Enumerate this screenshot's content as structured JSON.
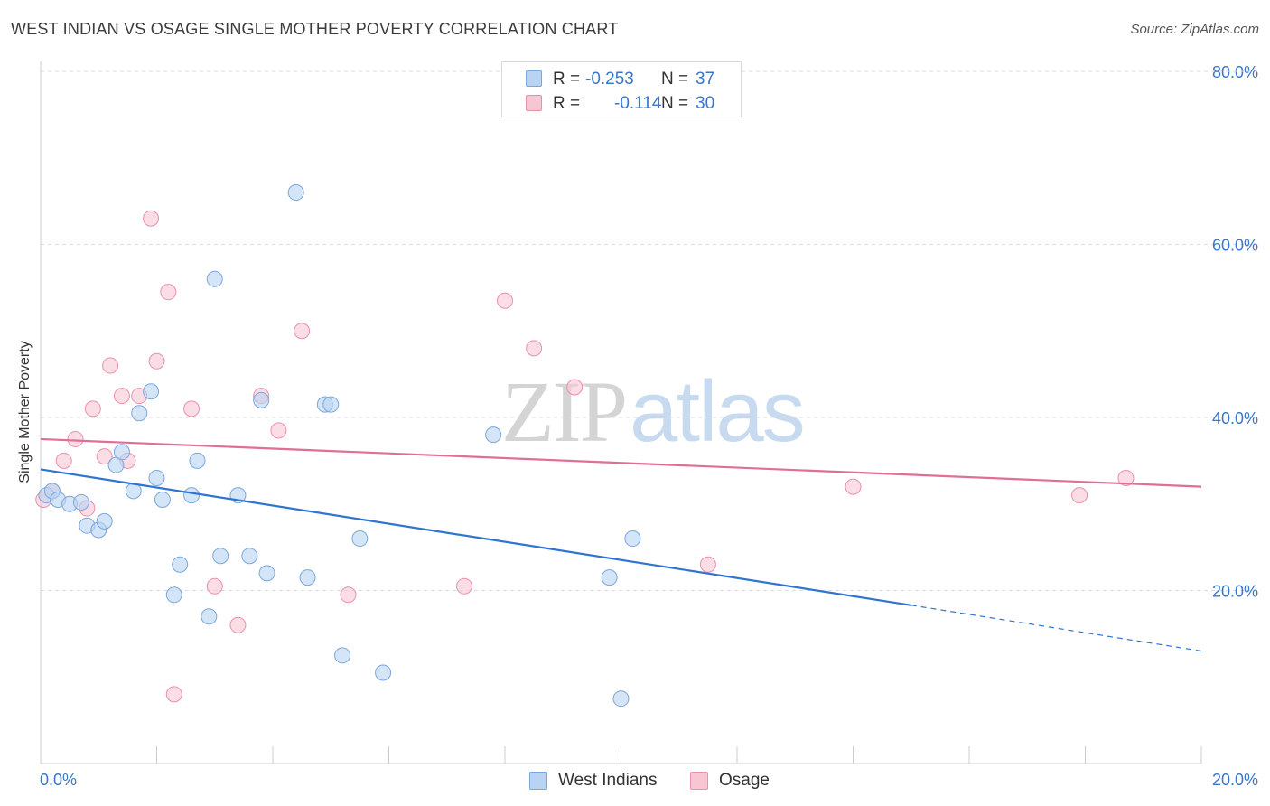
{
  "title": "WEST INDIAN VS OSAGE SINGLE MOTHER POVERTY CORRELATION CHART",
  "source": "Source: ZipAtlas.com",
  "watermark": {
    "zip": "ZIP",
    "atlas": "atlas"
  },
  "legend": {
    "series1": {
      "r_label": "R =",
      "r_value": "-0.253",
      "n_label": "N =",
      "n_value": "37"
    },
    "series2": {
      "r_label": "R =",
      "r_value": "-0.114",
      "n_label": "N =",
      "n_value": "30"
    }
  },
  "bottom_legend": {
    "series1": "West Indians",
    "series2": "Osage"
  },
  "colors": {
    "blue_fill": "#b9d3f3",
    "blue_stroke": "#7aa7df",
    "blue_line": "#2f74d0",
    "pink_fill": "#f8c6d3",
    "pink_stroke": "#e891ab",
    "pink_line": "#e06e95",
    "tick_text": "#3a76c9",
    "grid": "#dddddd"
  },
  "chart_data": {
    "type": "scatter",
    "title": "WEST INDIAN VS OSAGE SINGLE MOTHER POVERTY CORRELATION CHART",
    "xlabel": "",
    "ylabel": "Single Mother Poverty",
    "xlim": [
      0,
      20
    ],
    "ylim": [
      0,
      80
    ],
    "x_unit": "%",
    "y_unit": "%",
    "x_ticks_labeled": [
      "0.0%",
      "20.0%"
    ],
    "y_ticks": [
      20,
      40,
      60,
      80
    ],
    "y_tick_labels": [
      "20.0%",
      "40.0%",
      "60.0%",
      "80.0%"
    ],
    "grid": "horizontal dashed",
    "legend_position": "top-center",
    "series": [
      {
        "name": "West Indians",
        "color": "#7aa7df",
        "r": -0.253,
        "n": 37,
        "trend": {
          "x0": 0.0,
          "y0": 34.0,
          "x1": 15.0,
          "y1": 18.3,
          "dashed_to_x": 20.0,
          "dashed_to_y": 13.0
        },
        "points": [
          [
            0.1,
            31.0
          ],
          [
            0.2,
            31.5
          ],
          [
            0.3,
            30.5
          ],
          [
            0.5,
            30.0
          ],
          [
            0.7,
            30.2
          ],
          [
            0.8,
            27.5
          ],
          [
            1.0,
            27.0
          ],
          [
            1.3,
            34.5
          ],
          [
            1.1,
            28.0
          ],
          [
            1.4,
            36.0
          ],
          [
            1.6,
            31.5
          ],
          [
            1.7,
            40.5
          ],
          [
            1.9,
            43.0
          ],
          [
            2.0,
            33.0
          ],
          [
            2.1,
            30.5
          ],
          [
            2.3,
            19.5
          ],
          [
            2.4,
            23.0
          ],
          [
            2.6,
            31.0
          ],
          [
            2.7,
            35.0
          ],
          [
            2.9,
            17.0
          ],
          [
            3.0,
            56.0
          ],
          [
            3.1,
            24.0
          ],
          [
            3.4,
            31.0
          ],
          [
            3.6,
            24.0
          ],
          [
            3.8,
            42.0
          ],
          [
            3.9,
            22.0
          ],
          [
            4.4,
            66.0
          ],
          [
            4.6,
            21.5
          ],
          [
            4.9,
            41.5
          ],
          [
            5.0,
            41.5
          ],
          [
            5.2,
            12.5
          ],
          [
            5.5,
            26.0
          ],
          [
            5.9,
            10.5
          ],
          [
            7.8,
            38.0
          ],
          [
            9.8,
            21.5
          ],
          [
            10.2,
            26.0
          ],
          [
            10.0,
            7.5
          ]
        ]
      },
      {
        "name": "Osage",
        "color": "#e891ab",
        "r": -0.114,
        "n": 30,
        "trend": {
          "x0": 0.0,
          "y0": 37.5,
          "x1": 20.0,
          "y1": 32.0
        },
        "points": [
          [
            0.05,
            30.5
          ],
          [
            0.2,
            31.5
          ],
          [
            0.4,
            35.0
          ],
          [
            0.6,
            37.5
          ],
          [
            0.8,
            29.5
          ],
          [
            0.9,
            41.0
          ],
          [
            1.1,
            35.5
          ],
          [
            1.2,
            46.0
          ],
          [
            1.4,
            42.5
          ],
          [
            1.5,
            35.0
          ],
          [
            1.7,
            42.5
          ],
          [
            1.9,
            63.0
          ],
          [
            2.0,
            46.5
          ],
          [
            2.2,
            54.5
          ],
          [
            2.3,
            8.0
          ],
          [
            2.6,
            41.0
          ],
          [
            3.0,
            20.5
          ],
          [
            3.4,
            16.0
          ],
          [
            3.8,
            42.5
          ],
          [
            4.1,
            38.5
          ],
          [
            4.5,
            50.0
          ],
          [
            5.3,
            19.5
          ],
          [
            7.3,
            20.5
          ],
          [
            8.0,
            53.5
          ],
          [
            8.5,
            48.0
          ],
          [
            9.2,
            43.5
          ],
          [
            11.5,
            23.0
          ],
          [
            14.0,
            32.0
          ],
          [
            17.9,
            31.0
          ],
          [
            18.7,
            33.0
          ]
        ]
      }
    ]
  }
}
